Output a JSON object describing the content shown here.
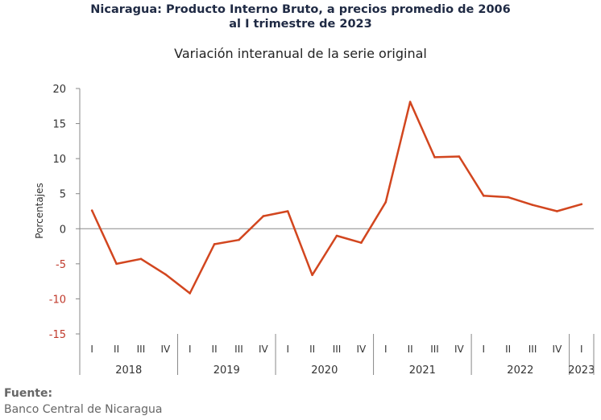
{
  "title_line1": "Nicaragua: Producto Interno Bruto, a precios promedio de 2006",
  "title_line2": "al I trimestre de 2023",
  "subtitle": "Variación interanual de la serie original",
  "source_label": "Fuente:",
  "source_text": "Banco Central de Nicaragua",
  "colors": {
    "series": "#d2461f",
    "negative_tick": "#c0392b",
    "axis": "#888888"
  },
  "chart_data": {
    "type": "line",
    "title": "Nicaragua: Producto Interno Bruto, a precios promedio de 2006 al I trimestre de 2023",
    "subtitle": "Variación interanual de la serie original",
    "ylabel": "Porcentajes",
    "xlabel": "",
    "ylim": [
      -15,
      20
    ],
    "yticks": [
      20,
      15,
      10,
      5,
      0,
      -5,
      -10,
      -15
    ],
    "grid": false,
    "x": [
      "I",
      "II",
      "III",
      "IV",
      "I",
      "II",
      "III",
      "IV",
      "I",
      "II",
      "III",
      "IV",
      "I",
      "II",
      "III",
      "IV",
      "I",
      "II",
      "III",
      "IV",
      "I"
    ],
    "years": [
      {
        "label": "2018",
        "count": 4
      },
      {
        "label": "2019",
        "count": 4
      },
      {
        "label": "2020",
        "count": 4
      },
      {
        "label": "2021",
        "count": 4
      },
      {
        "label": "2022",
        "count": 4
      },
      {
        "label": "2023",
        "count": 1
      }
    ],
    "series": [
      {
        "values": [
          2.6,
          -5.0,
          -4.3,
          -6.5,
          -9.2,
          -2.2,
          -1.6,
          1.8,
          2.5,
          -6.6,
          -1.0,
          -2.0,
          3.8,
          18.1,
          10.2,
          10.3,
          4.7,
          4.5,
          3.4,
          2.5,
          3.5
        ]
      }
    ]
  }
}
